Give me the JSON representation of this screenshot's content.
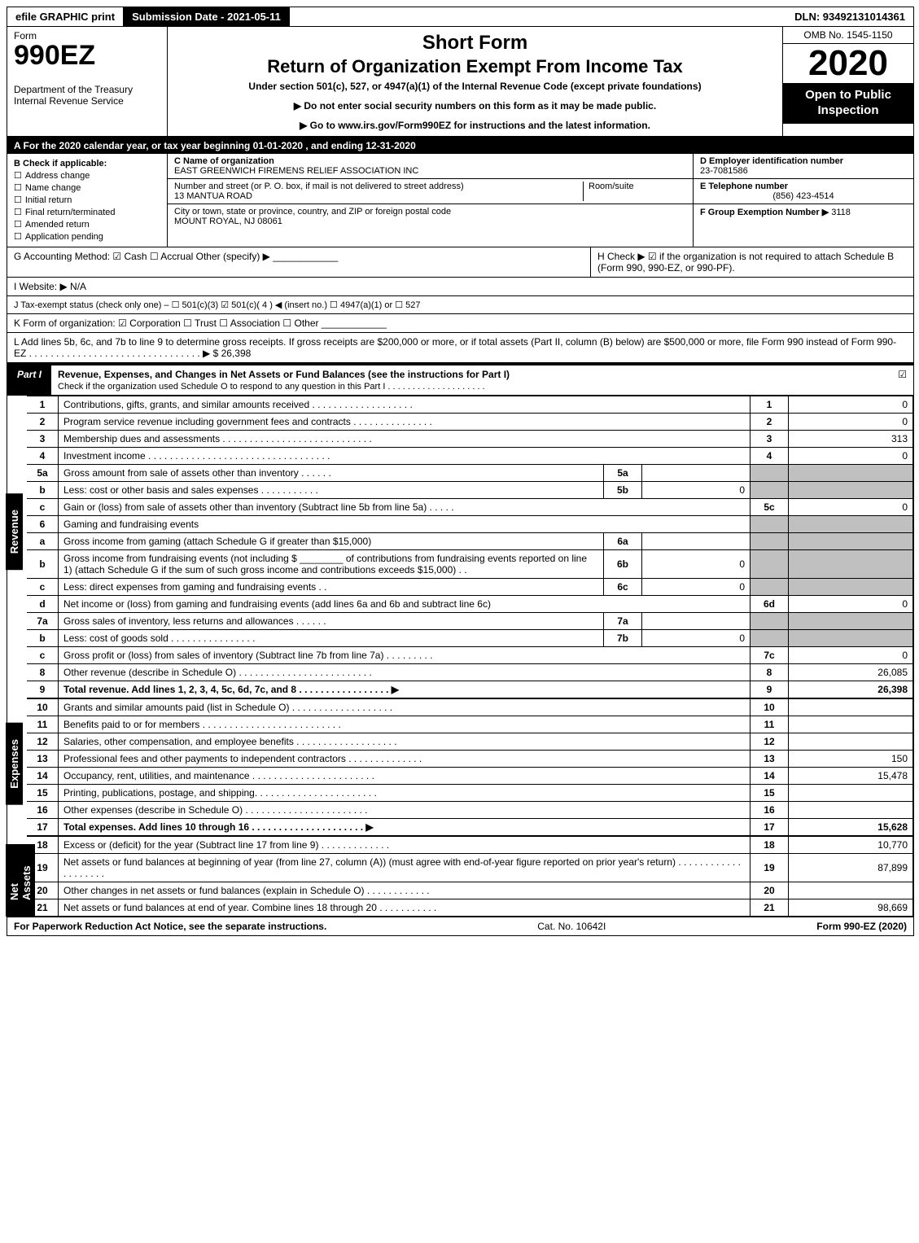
{
  "topbar": {
    "efile": "efile GRAPHIC print",
    "submission": "Submission Date - 2021-05-11",
    "dln": "DLN: 93492131014361"
  },
  "header": {
    "form_word": "Form",
    "form_num": "990EZ",
    "dept": "Department of the Treasury",
    "irs": "Internal Revenue Service",
    "title1": "Short Form",
    "title2": "Return of Organization Exempt From Income Tax",
    "sub": "Under section 501(c), 527, or 4947(a)(1) of the Internal Revenue Code (except private foundations)",
    "warn": "▶ Do not enter social security numbers on this form as it may be made public.",
    "goto": "▶ Go to www.irs.gov/Form990EZ for instructions and the latest information.",
    "omb": "OMB No. 1545-1150",
    "year": "2020",
    "open": "Open to Public Inspection"
  },
  "period": "A For the 2020 calendar year, or tax year beginning 01-01-2020 , and ending 12-31-2020",
  "boxB": {
    "head": "B  Check if applicable:",
    "items": [
      "Address change",
      "Name change",
      "Initial return",
      "Final return/terminated",
      "Amended return",
      "Application pending"
    ]
  },
  "boxC": {
    "nameLbl": "C Name of organization",
    "name": "EAST GREENWICH FIREMENS RELIEF ASSOCIATION INC",
    "addrLbl": "Number and street (or P. O. box, if mail is not delivered to street address)",
    "addr": "13 MANTUA ROAD",
    "roomLbl": "Room/suite",
    "cityLbl": "City or town, state or province, country, and ZIP or foreign postal code",
    "city": "MOUNT ROYAL, NJ  08061"
  },
  "boxD": {
    "lbl": "D Employer identification number",
    "val": "23-7081586"
  },
  "boxE": {
    "lbl": "E Telephone number",
    "val": "(856) 423-4514"
  },
  "boxF": {
    "lbl": "F Group Exemption Number  ▶",
    "val": "3118"
  },
  "lineG": "G Accounting Method:   ☑ Cash   ☐ Accrual   Other (specify) ▶ ____________",
  "lineH": "H  Check ▶ ☑ if the organization is not required to attach Schedule B (Form 990, 990-EZ, or 990-PF).",
  "lineI": "I Website: ▶ N/A",
  "lineJ": "J Tax-exempt status (check only one) – ☐ 501(c)(3)  ☑ 501(c)( 4 ) ◀ (insert no.)  ☐ 4947(a)(1) or  ☐ 527",
  "lineK": "K Form of organization:   ☑ Corporation   ☐ Trust   ☐ Association   ☐ Other  ____________",
  "lineL": "L Add lines 5b, 6c, and 7b to line 9 to determine gross receipts. If gross receipts are $200,000 or more, or if total assets (Part II, column (B) below) are $500,000 or more, file Form 990 instead of Form 990-EZ . . . . . . . . . . . . . . . . . . . . . . . . . . . . . . . . ▶ $ 26,398",
  "part1": {
    "tab": "Part I",
    "title": "Revenue, Expenses, and Changes in Net Assets or Fund Balances (see the instructions for Part I)",
    "sub": "Check if the organization used Schedule O to respond to any question in this Part I . . . . . . . . . . . . . . . . . . . .",
    "checked": "☑"
  },
  "sideTabs": {
    "revenue": "Revenue",
    "expenses": "Expenses",
    "net": "Net Assets"
  },
  "revRows": [
    {
      "n": "1",
      "desc": "Contributions, gifts, grants, and similar amounts received . . . . . . . . . . . . . . . . . . .",
      "num": "1",
      "val": "0"
    },
    {
      "n": "2",
      "desc": "Program service revenue including government fees and contracts . . . . . . . . . . . . . . .",
      "num": "2",
      "val": "0"
    },
    {
      "n": "3",
      "desc": "Membership dues and assessments . . . . . . . . . . . . . . . . . . . . . . . . . . . .",
      "num": "3",
      "val": "313"
    },
    {
      "n": "4",
      "desc": "Investment income . . . . . . . . . . . . . . . . . . . . . . . . . . . . . . . . . .",
      "num": "4",
      "val": "0"
    }
  ],
  "line5a": {
    "n": "5a",
    "desc": "Gross amount from sale of assets other than inventory . . . . . .",
    "inum": "5a",
    "ival": ""
  },
  "line5b": {
    "n": "b",
    "desc": "Less: cost or other basis and sales expenses . . . . . . . . . . .",
    "inum": "5b",
    "ival": "0"
  },
  "line5c": {
    "n": "c",
    "desc": "Gain or (loss) from sale of assets other than inventory (Subtract line 5b from line 5a) . . . . .",
    "num": "5c",
    "val": "0"
  },
  "line6": {
    "n": "6",
    "desc": "Gaming and fundraising events"
  },
  "line6a": {
    "n": "a",
    "desc": "Gross income from gaming (attach Schedule G if greater than $15,000)",
    "inum": "6a",
    "ival": ""
  },
  "line6b": {
    "n": "b",
    "desc": "Gross income from fundraising events (not including $ ________ of contributions from fundraising events reported on line 1) (attach Schedule G if the sum of such gross income and contributions exceeds $15,000)   . .",
    "inum": "6b",
    "ival": "0"
  },
  "line6c": {
    "n": "c",
    "desc": "Less: direct expenses from gaming and fundraising events     . .",
    "inum": "6c",
    "ival": "0"
  },
  "line6d": {
    "n": "d",
    "desc": "Net income or (loss) from gaming and fundraising events (add lines 6a and 6b and subtract line 6c)",
    "num": "6d",
    "val": "0"
  },
  "line7a": {
    "n": "7a",
    "desc": "Gross sales of inventory, less returns and allowances . . . . . .",
    "inum": "7a",
    "ival": ""
  },
  "line7b": {
    "n": "b",
    "desc": "Less: cost of goods sold   . . . . . . . . . . . . . . . .",
    "inum": "7b",
    "ival": "0"
  },
  "line7c": {
    "n": "c",
    "desc": "Gross profit or (loss) from sales of inventory (Subtract line 7b from line 7a) . . . . . . . . .",
    "num": "7c",
    "val": "0"
  },
  "line8": {
    "n": "8",
    "desc": "Other revenue (describe in Schedule O) . . . . . . . . . . . . . . . . . . . . . . . . .",
    "num": "8",
    "val": "26,085"
  },
  "line9": {
    "n": "9",
    "desc": "Total revenue. Add lines 1, 2, 3, 4, 5c, 6d, 7c, and 8  . . . . . . . . . . . . . . . . .   ▶",
    "num": "9",
    "val": "26,398",
    "bold": true
  },
  "expRows": [
    {
      "n": "10",
      "desc": "Grants and similar amounts paid (list in Schedule O) . . . . . . . . . . . . . . . . . . .",
      "num": "10",
      "val": ""
    },
    {
      "n": "11",
      "desc": "Benefits paid to or for members   . . . . . . . . . . . . . . . . . . . . . . . . . .",
      "num": "11",
      "val": ""
    },
    {
      "n": "12",
      "desc": "Salaries, other compensation, and employee benefits . . . . . . . . . . . . . . . . . . .",
      "num": "12",
      "val": ""
    },
    {
      "n": "13",
      "desc": "Professional fees and other payments to independent contractors . . . . . . . . . . . . . .",
      "num": "13",
      "val": "150"
    },
    {
      "n": "14",
      "desc": "Occupancy, rent, utilities, and maintenance . . . . . . . . . . . . . . . . . . . . . . .",
      "num": "14",
      "val": "15,478"
    },
    {
      "n": "15",
      "desc": "Printing, publications, postage, and shipping. . . . . . . . . . . . . . . . . . . . . . .",
      "num": "15",
      "val": ""
    },
    {
      "n": "16",
      "desc": "Other expenses (describe in Schedule O)   . . . . . . . . . . . . . . . . . . . . . . .",
      "num": "16",
      "val": ""
    },
    {
      "n": "17",
      "desc": "Total expenses. Add lines 10 through 16   . . . . . . . . . . . . . . . . . . . . .   ▶",
      "num": "17",
      "val": "15,628",
      "bold": true
    }
  ],
  "naRows": [
    {
      "n": "18",
      "desc": "Excess or (deficit) for the year (Subtract line 17 from line 9)     . . . . . . . . . . . . .",
      "num": "18",
      "val": "10,770"
    },
    {
      "n": "19",
      "desc": "Net assets or fund balances at beginning of year (from line 27, column (A)) (must agree with end-of-year figure reported on prior year's return) . . . . . . . . . . . . . . . . . . . .",
      "num": "19",
      "val": "87,899"
    },
    {
      "n": "20",
      "desc": "Other changes in net assets or fund balances (explain in Schedule O) . . . . . . . . . . . .",
      "num": "20",
      "val": ""
    },
    {
      "n": "21",
      "desc": "Net assets or fund balances at end of year. Combine lines 18 through 20 . . . . . . . . . . .",
      "num": "21",
      "val": "98,669"
    }
  ],
  "footer": {
    "left": "For Paperwork Reduction Act Notice, see the separate instructions.",
    "mid": "Cat. No. 10642I",
    "right": "Form 990-EZ (2020)"
  }
}
